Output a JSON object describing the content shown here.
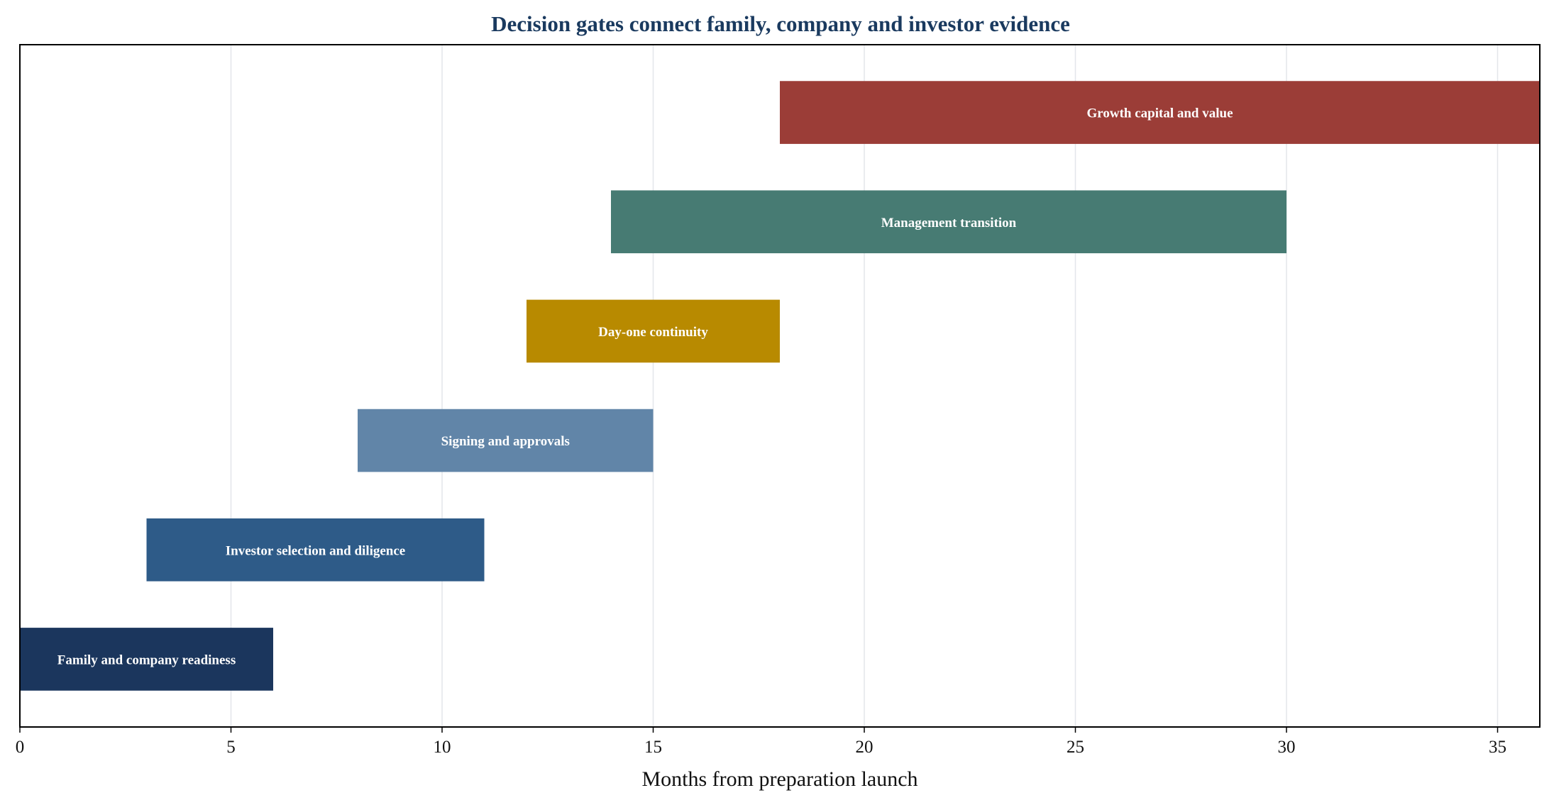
{
  "chart_data": {
    "type": "gantt",
    "title": "Decision gates connect family, company and investor evidence",
    "xlabel": "Months from preparation launch",
    "ylabel": "",
    "xlim": [
      0,
      36
    ],
    "xticks": [
      0,
      5,
      10,
      15,
      20,
      25,
      30,
      35
    ],
    "grid": "vertical",
    "tasks": [
      {
        "label": "Family and company readiness",
        "start": 0,
        "end": 6,
        "color": "#1b365d"
      },
      {
        "label": "Investor selection and diligence",
        "start": 3,
        "end": 11,
        "color": "#2e5b88"
      },
      {
        "label": "Signing and approvals",
        "start": 8,
        "end": 15,
        "color": "#6185a8"
      },
      {
        "label": "Day-one continuity",
        "start": 12,
        "end": 18,
        "color": "#b88a00"
      },
      {
        "label": "Management transition",
        "start": 14,
        "end": 30,
        "color": "#477b73"
      },
      {
        "label": "Growth capital and value",
        "start": 18,
        "end": 36,
        "color": "#9b3d37"
      }
    ]
  }
}
